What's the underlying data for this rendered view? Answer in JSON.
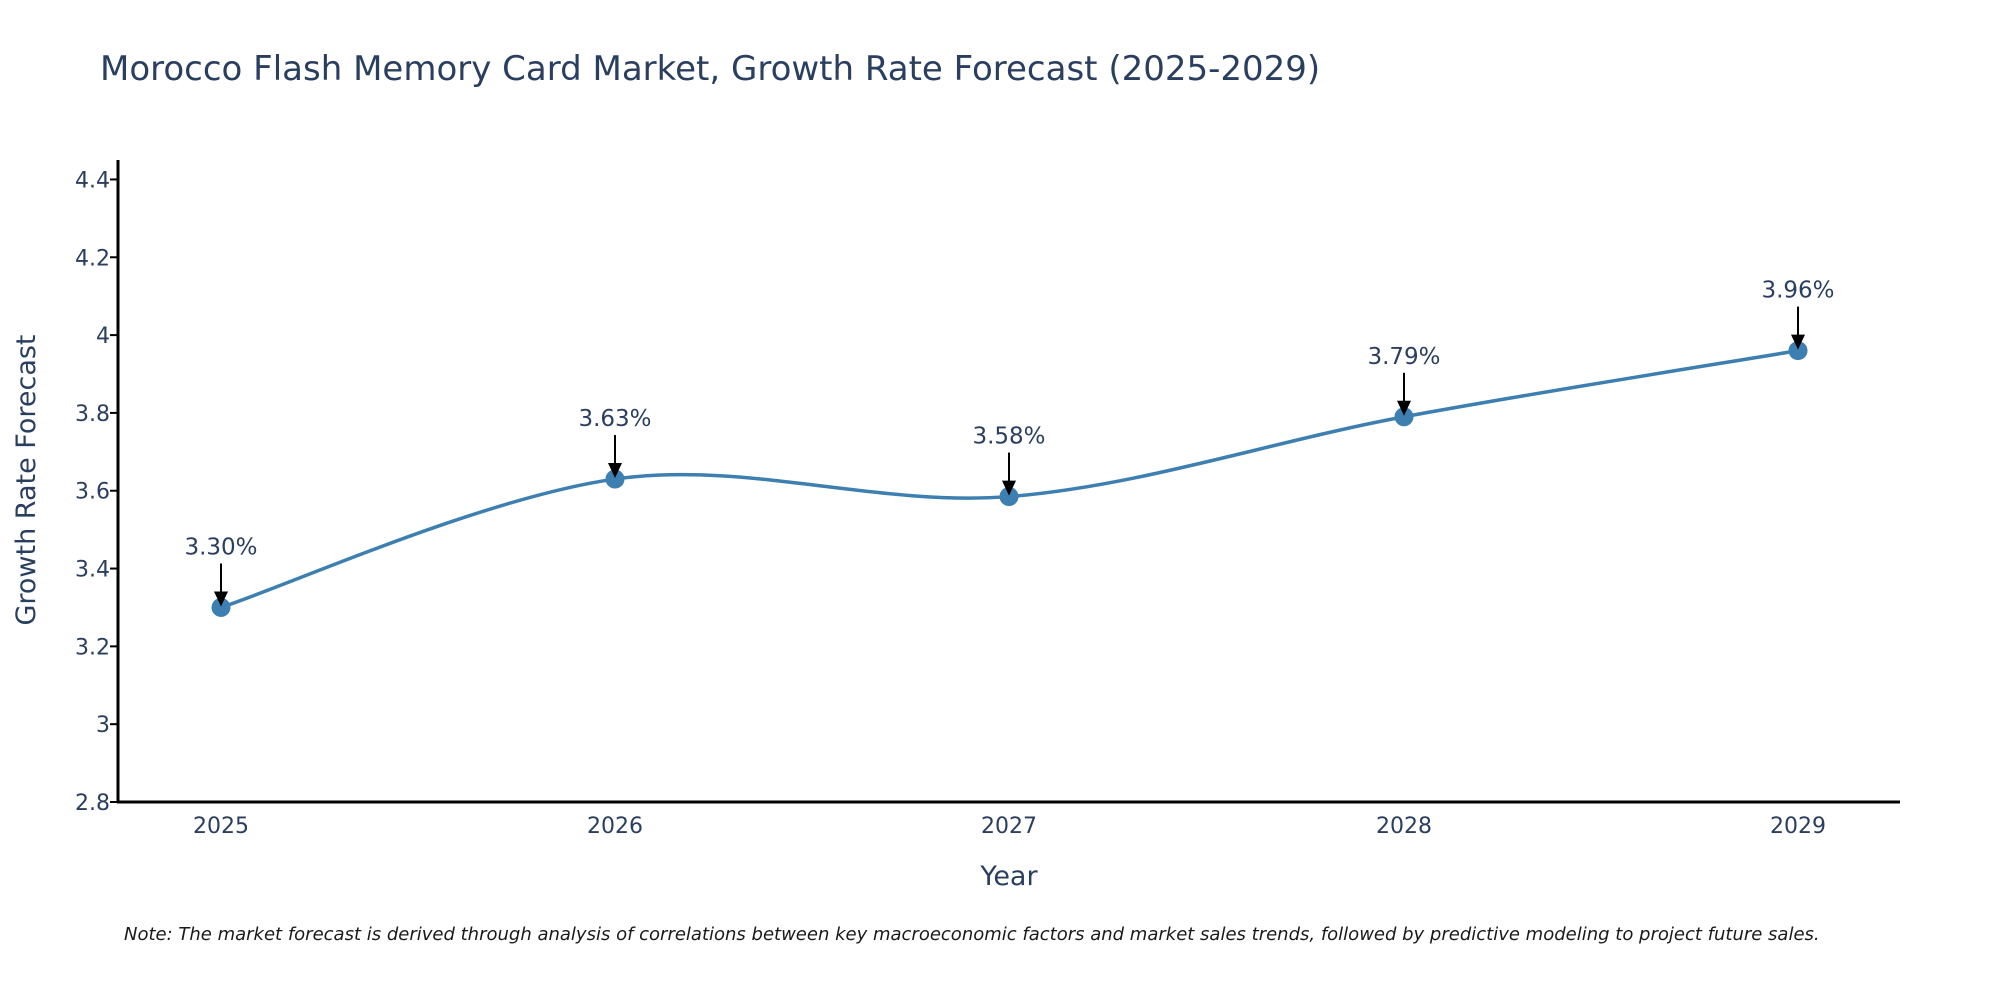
{
  "chart_data": {
    "type": "line",
    "title": "Morocco Flash Memory Card Market, Growth Rate Forecast (2025-2029)",
    "xlabel": "Year",
    "ylabel": "Growth Rate Forecast",
    "categories": [
      "2025",
      "2026",
      "2027",
      "2028",
      "2029"
    ],
    "series": [
      {
        "name": "Growth Rate Forecast",
        "values": [
          3.3,
          3.63,
          3.585,
          3.79,
          3.96
        ]
      }
    ],
    "data_labels": [
      "3.30%",
      "3.63%",
      "3.58%",
      "3.79%",
      "3.96%"
    ],
    "ylim": [
      2.8,
      4.45
    ],
    "yticks": [
      2.8,
      3,
      3.2,
      3.4,
      3.6,
      3.8,
      4,
      4.2,
      4.4
    ],
    "ytick_labels": [
      "2.8",
      "3",
      "3.2",
      "3.4",
      "3.6",
      "3.8",
      "4",
      "4.2",
      "4.4"
    ],
    "grid": false,
    "line_color": "#3d7fb0",
    "marker_color": "#3d7fb0",
    "arrow_color": "#000000",
    "note": "Note: The market forecast is derived through analysis of correlations between key macroeconomic factors and market sales trends, followed by predictive modeling to project future sales."
  }
}
